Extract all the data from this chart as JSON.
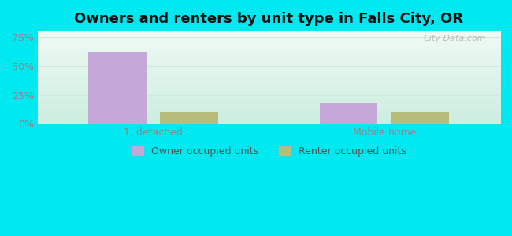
{
  "title": "Owners and renters by unit type in Falls City, OR",
  "categories": [
    "1, detached",
    "Mobile home"
  ],
  "owner_values": [
    62,
    18
  ],
  "renter_values": [
    10,
    10
  ],
  "owner_color": "#c5a8d8",
  "renter_color": "#b8bc7a",
  "yticks": [
    0,
    25,
    50,
    75
  ],
  "ylim": [
    0,
    80
  ],
  "bar_width": 0.25,
  "fig_bg_color": "#00e8f0",
  "title_fontsize": 13,
  "legend_labels": [
    "Owner occupied units",
    "Renter occupied units"
  ],
  "watermark": "City-Data.com",
  "tick_color": "#888888",
  "grid_color": "#d8e8d0"
}
